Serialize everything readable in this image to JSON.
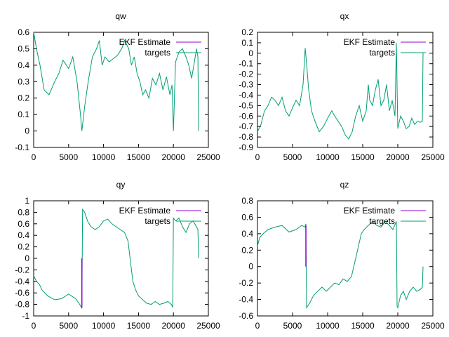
{
  "chart_data": [
    {
      "type": "line",
      "title": "qw",
      "xlabel": "",
      "ylabel": "",
      "xlim": [
        0,
        25000
      ],
      "ylim": [
        -0.1,
        0.6
      ],
      "xticks": [
        0,
        5000,
        10000,
        15000,
        20000,
        25000
      ],
      "yticks": [
        -0.1,
        0,
        0.1,
        0.2,
        0.3,
        0.4,
        0.5,
        0.6
      ],
      "legend_position": "top-right",
      "series": [
        {
          "name": "EKF Estimate",
          "color": "#9400d3",
          "x": [
            23600
          ],
          "y": [
            0.5
          ]
        },
        {
          "name": "targets",
          "color": "#009e73",
          "x": [
            0,
            400,
            900,
            1500,
            2200,
            3000,
            3600,
            4200,
            5000,
            5600,
            6200,
            6700,
            6900,
            7300,
            7800,
            8400,
            9000,
            9400,
            9800,
            10200,
            10800,
            11400,
            12000,
            12600,
            13000,
            13600,
            14000,
            14400,
            14800,
            15200,
            15600,
            16000,
            16500,
            17000,
            17500,
            18000,
            18500,
            19000,
            19500,
            19800,
            20000,
            20300,
            20800,
            21300,
            21800,
            22200,
            22600,
            23000,
            23300,
            23500,
            23600
          ],
          "y": [
            0.6,
            0.5,
            0.4,
            0.25,
            0.22,
            0.3,
            0.35,
            0.43,
            0.38,
            0.45,
            0.3,
            0.1,
            0.0,
            0.15,
            0.3,
            0.45,
            0.5,
            0.55,
            0.4,
            0.45,
            0.42,
            0.44,
            0.46,
            0.5,
            0.55,
            0.5,
            0.4,
            0.45,
            0.35,
            0.3,
            0.22,
            0.25,
            0.2,
            0.32,
            0.28,
            0.35,
            0.25,
            0.33,
            0.22,
            0.28,
            0.0,
            0.42,
            0.48,
            0.5,
            0.45,
            0.4,
            0.32,
            0.42,
            0.5,
            0.45,
            0.0
          ]
        }
      ]
    },
    {
      "type": "line",
      "title": "qx",
      "xlabel": "",
      "ylabel": "",
      "xlim": [
        0,
        25000
      ],
      "ylim": [
        -0.9,
        0.2
      ],
      "xticks": [
        0,
        5000,
        10000,
        15000,
        20000,
        25000
      ],
      "yticks": [
        -0.9,
        -0.8,
        -0.7,
        -0.6,
        -0.5,
        -0.4,
        -0.3,
        -0.2,
        -0.1,
        0,
        0.1,
        0.2
      ],
      "legend_position": "top-right",
      "series": [
        {
          "name": "EKF Estimate",
          "color": "#9400d3",
          "x": [
            23600
          ],
          "y": [
            -0.63
          ]
        },
        {
          "name": "targets",
          "color": "#009e73",
          "x": [
            0,
            500,
            1000,
            1500,
            2000,
            2500,
            3000,
            3500,
            4000,
            4500,
            5000,
            5500,
            6000,
            6500,
            6800,
            7000,
            7300,
            7700,
            8200,
            8800,
            9400,
            10000,
            10600,
            11000,
            11500,
            12000,
            12500,
            13000,
            13500,
            14000,
            14500,
            15000,
            15500,
            15800,
            16000,
            16400,
            16800,
            17200,
            17600,
            18000,
            18400,
            18800,
            19200,
            19600,
            19800,
            20000,
            20400,
            20800,
            21200,
            21600,
            22000,
            22400,
            22800,
            23200,
            23500,
            23600
          ],
          "y": [
            -0.75,
            -0.68,
            -0.55,
            -0.5,
            -0.42,
            -0.45,
            -0.5,
            -0.42,
            -0.55,
            -0.6,
            -0.52,
            -0.45,
            -0.5,
            -0.3,
            0.05,
            -0.1,
            -0.35,
            -0.55,
            -0.65,
            -0.75,
            -0.7,
            -0.62,
            -0.55,
            -0.6,
            -0.65,
            -0.7,
            -0.78,
            -0.82,
            -0.75,
            -0.6,
            -0.5,
            -0.65,
            -0.55,
            -0.3,
            -0.45,
            -0.5,
            -0.35,
            -0.25,
            -0.5,
            -0.45,
            -0.3,
            -0.55,
            -0.45,
            -0.6,
            0.1,
            -0.72,
            -0.6,
            -0.65,
            -0.72,
            -0.7,
            -0.62,
            -0.68,
            -0.65,
            -0.66,
            -0.65,
            0.0
          ]
        }
      ]
    },
    {
      "type": "line",
      "title": "qy",
      "xlabel": "",
      "ylabel": "",
      "xlim": [
        0,
        25000
      ],
      "ylim": [
        -1,
        1
      ],
      "xticks": [
        0,
        5000,
        10000,
        15000,
        20000,
        25000
      ],
      "yticks": [
        -1,
        -0.8,
        -0.6,
        -0.4,
        -0.2,
        0,
        0.2,
        0.4,
        0.6,
        0.8,
        1
      ],
      "legend_position": "top-right",
      "series": [
        {
          "name": "EKF Estimate",
          "color": "#9400d3",
          "x": [
            6900,
            6900
          ],
          "y": [
            -0.85,
            0.0
          ]
        },
        {
          "name": "targets",
          "color": "#009e73",
          "x": [
            0,
            400,
            800,
            1200,
            2000,
            3000,
            4000,
            5000,
            6000,
            6600,
            6900,
            7000,
            7300,
            7700,
            8200,
            8800,
            9400,
            10000,
            10600,
            11200,
            11800,
            12400,
            13000,
            13500,
            13800,
            14200,
            14600,
            15000,
            15600,
            16200,
            16800,
            17400,
            18000,
            18600,
            19200,
            19700,
            19900,
            20000,
            20300,
            20800,
            21300,
            21800,
            22300,
            22800,
            23300,
            23500,
            23600
          ],
          "y": [
            -0.3,
            -0.4,
            -0.45,
            -0.55,
            -0.65,
            -0.72,
            -0.7,
            -0.62,
            -0.7,
            -0.8,
            -0.87,
            0.85,
            0.8,
            0.65,
            0.55,
            0.5,
            0.55,
            0.65,
            0.68,
            0.6,
            0.55,
            0.5,
            0.45,
            0.3,
            0.0,
            -0.4,
            -0.55,
            -0.65,
            -0.72,
            -0.78,
            -0.8,
            -0.75,
            -0.8,
            -0.78,
            -0.75,
            -0.8,
            -0.85,
            0.7,
            0.65,
            0.7,
            0.55,
            0.45,
            0.6,
            0.65,
            0.55,
            0.5,
            0.0
          ]
        }
      ]
    },
    {
      "type": "line",
      "title": "qz",
      "xlabel": "",
      "ylabel": "",
      "xlim": [
        0,
        25000
      ],
      "ylim": [
        -0.6,
        0.8
      ],
      "xticks": [
        0,
        5000,
        10000,
        15000,
        20000,
        25000
      ],
      "yticks": [
        -0.6,
        -0.4,
        -0.2,
        0,
        0.2,
        0.4,
        0.6,
        0.8
      ],
      "legend_position": "top-right",
      "series": [
        {
          "name": "EKF Estimate",
          "color": "#9400d3",
          "x": [
            6900,
            6900
          ],
          "y": [
            0.5,
            0.0
          ]
        },
        {
          "name": "targets",
          "color": "#009e73",
          "x": [
            0,
            300,
            800,
            1500,
            2500,
            3500,
            4500,
            5500,
            6300,
            6800,
            6900,
            7000,
            7400,
            8000,
            8600,
            9200,
            9800,
            10400,
            11000,
            11600,
            12200,
            12800,
            13400,
            14000,
            14400,
            14800,
            15200,
            15800,
            16400,
            17000,
            17600,
            18200,
            18800,
            19300,
            19800,
            19900,
            20000,
            20400,
            20800,
            21200,
            21700,
            22200,
            22700,
            23200,
            23500,
            23600
          ],
          "y": [
            0.25,
            0.35,
            0.4,
            0.45,
            0.48,
            0.5,
            0.42,
            0.45,
            0.5,
            0.48,
            0.52,
            -0.5,
            -0.45,
            -0.35,
            -0.3,
            -0.25,
            -0.3,
            -0.25,
            -0.2,
            -0.22,
            -0.15,
            -0.18,
            -0.12,
            0.1,
            0.25,
            0.4,
            0.45,
            0.5,
            0.55,
            0.5,
            0.48,
            0.55,
            0.5,
            0.45,
            0.55,
            -0.48,
            -0.5,
            -0.35,
            -0.3,
            -0.4,
            -0.3,
            -0.25,
            -0.3,
            -0.28,
            -0.25,
            0.0
          ]
        }
      ]
    }
  ]
}
